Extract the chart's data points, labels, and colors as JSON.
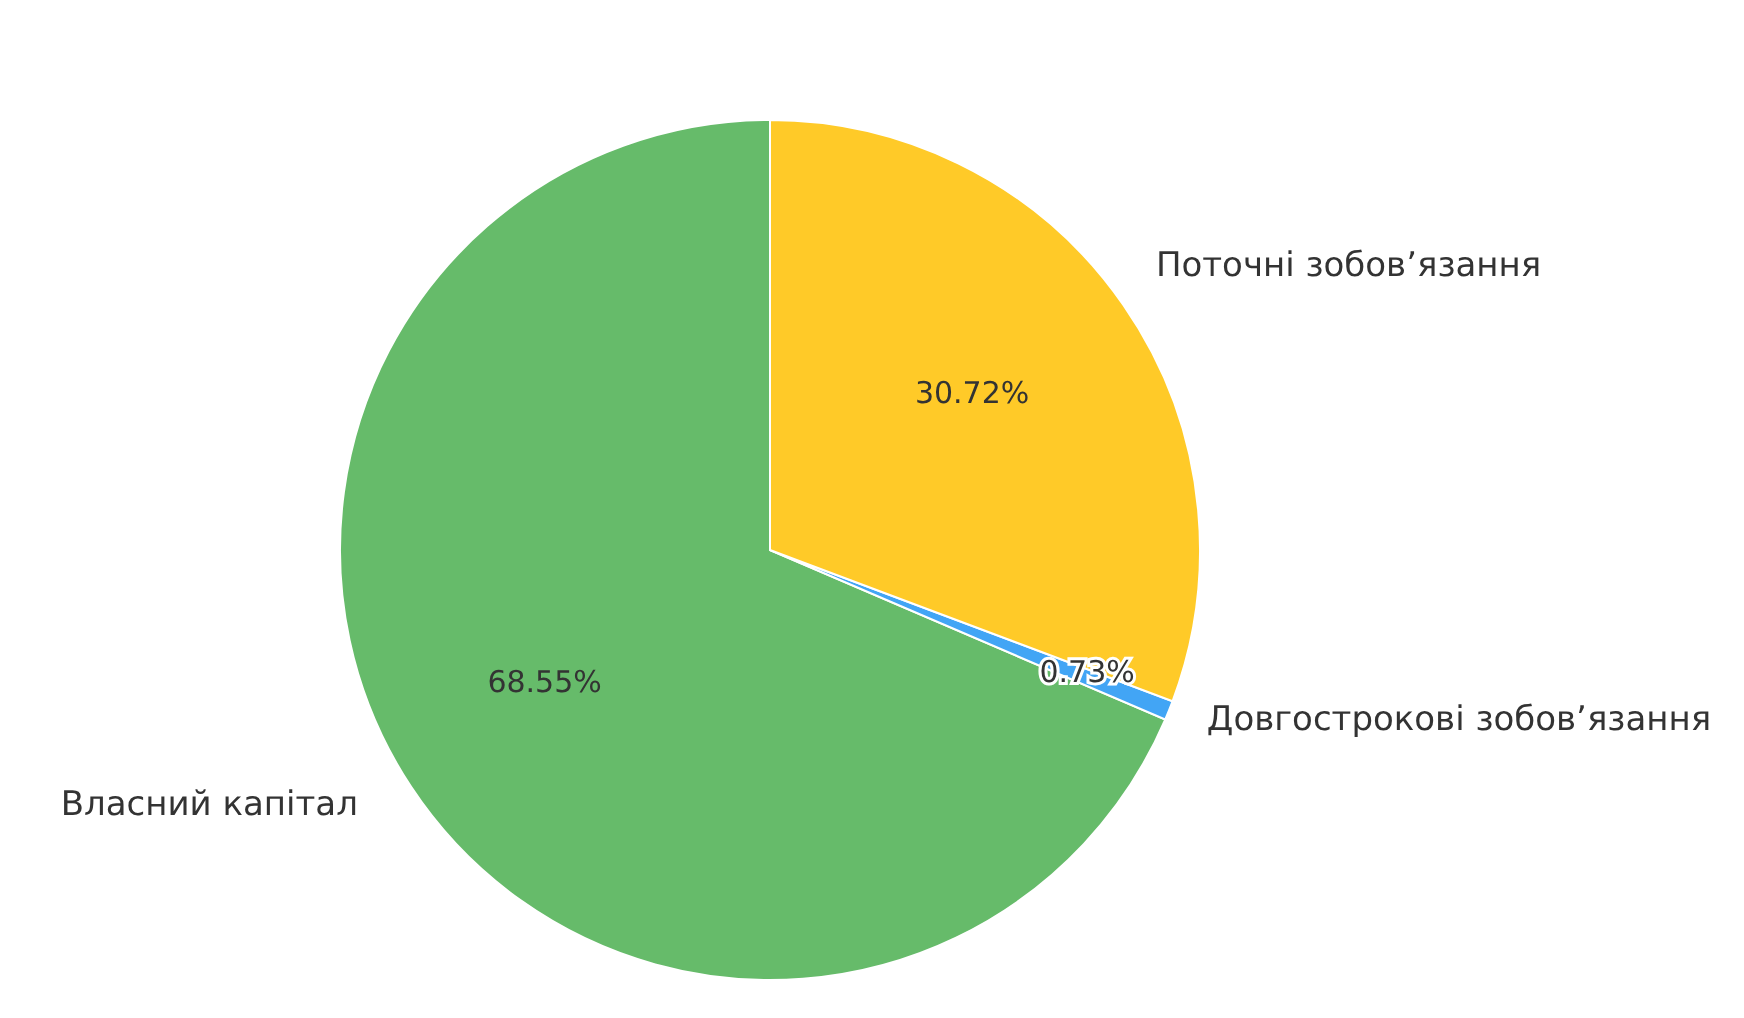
{
  "chart_data": {
    "type": "pie",
    "categories": [
      "Власний капітал",
      "Довгострокові зобов’язання",
      "Поточні зобов’язання"
    ],
    "values": [
      68.55,
      0.73,
      30.72
    ],
    "colors": [
      "#66bb6a",
      "#42a5f5",
      "#ffca28"
    ],
    "value_labels": [
      "68.55%",
      "0.73%",
      "30.72%"
    ]
  }
}
